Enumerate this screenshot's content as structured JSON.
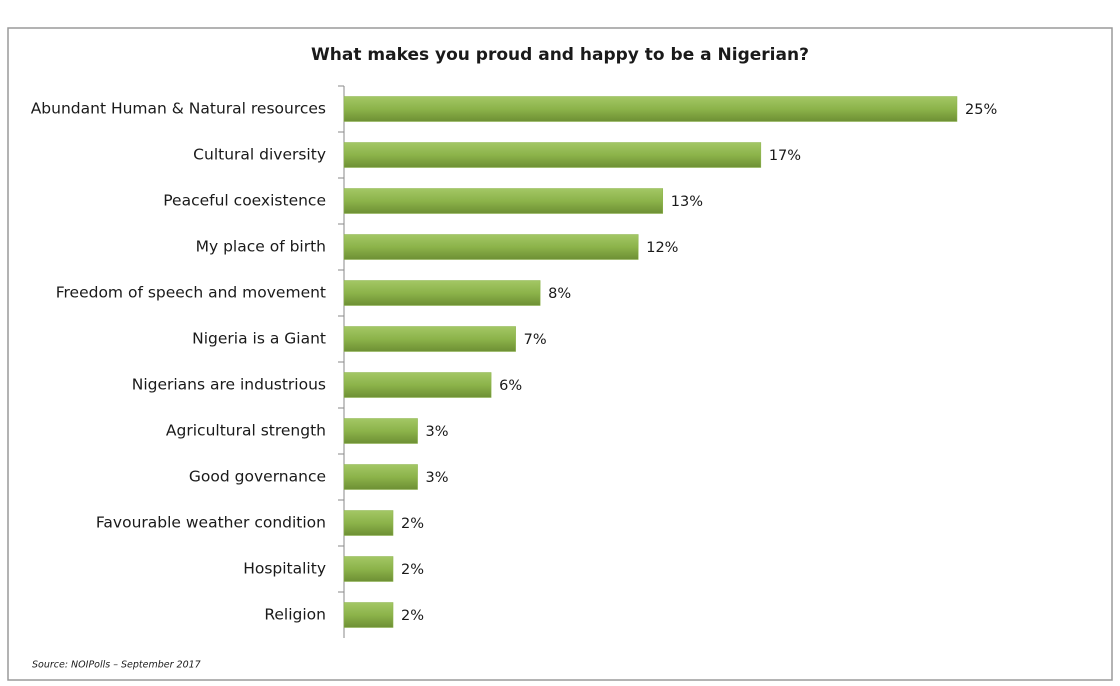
{
  "chart_data": {
    "type": "bar",
    "orientation": "horizontal",
    "title": "What makes you proud and happy to be a Nigerian?",
    "categories": [
      "Abundant Human & Natural resources",
      "Cultural diversity",
      "Peaceful coexistence",
      "My place of birth",
      "Freedom of speech and movement",
      "Nigeria is a Giant",
      "Nigerians are industrious",
      "Agricultural strength",
      "Good governance",
      "Favourable weather condition",
      "Hospitality",
      "Religion"
    ],
    "values": [
      25,
      17,
      13,
      12,
      8,
      7,
      6,
      3,
      3,
      2,
      2,
      2
    ],
    "value_labels": [
      "25%",
      "17%",
      "13%",
      "12%",
      "8%",
      "7%",
      "6%",
      "3%",
      "3%",
      "2%",
      "2%",
      "2%"
    ],
    "color": "#8cb34a",
    "source": "Source: NOIPolls – September 2017"
  }
}
